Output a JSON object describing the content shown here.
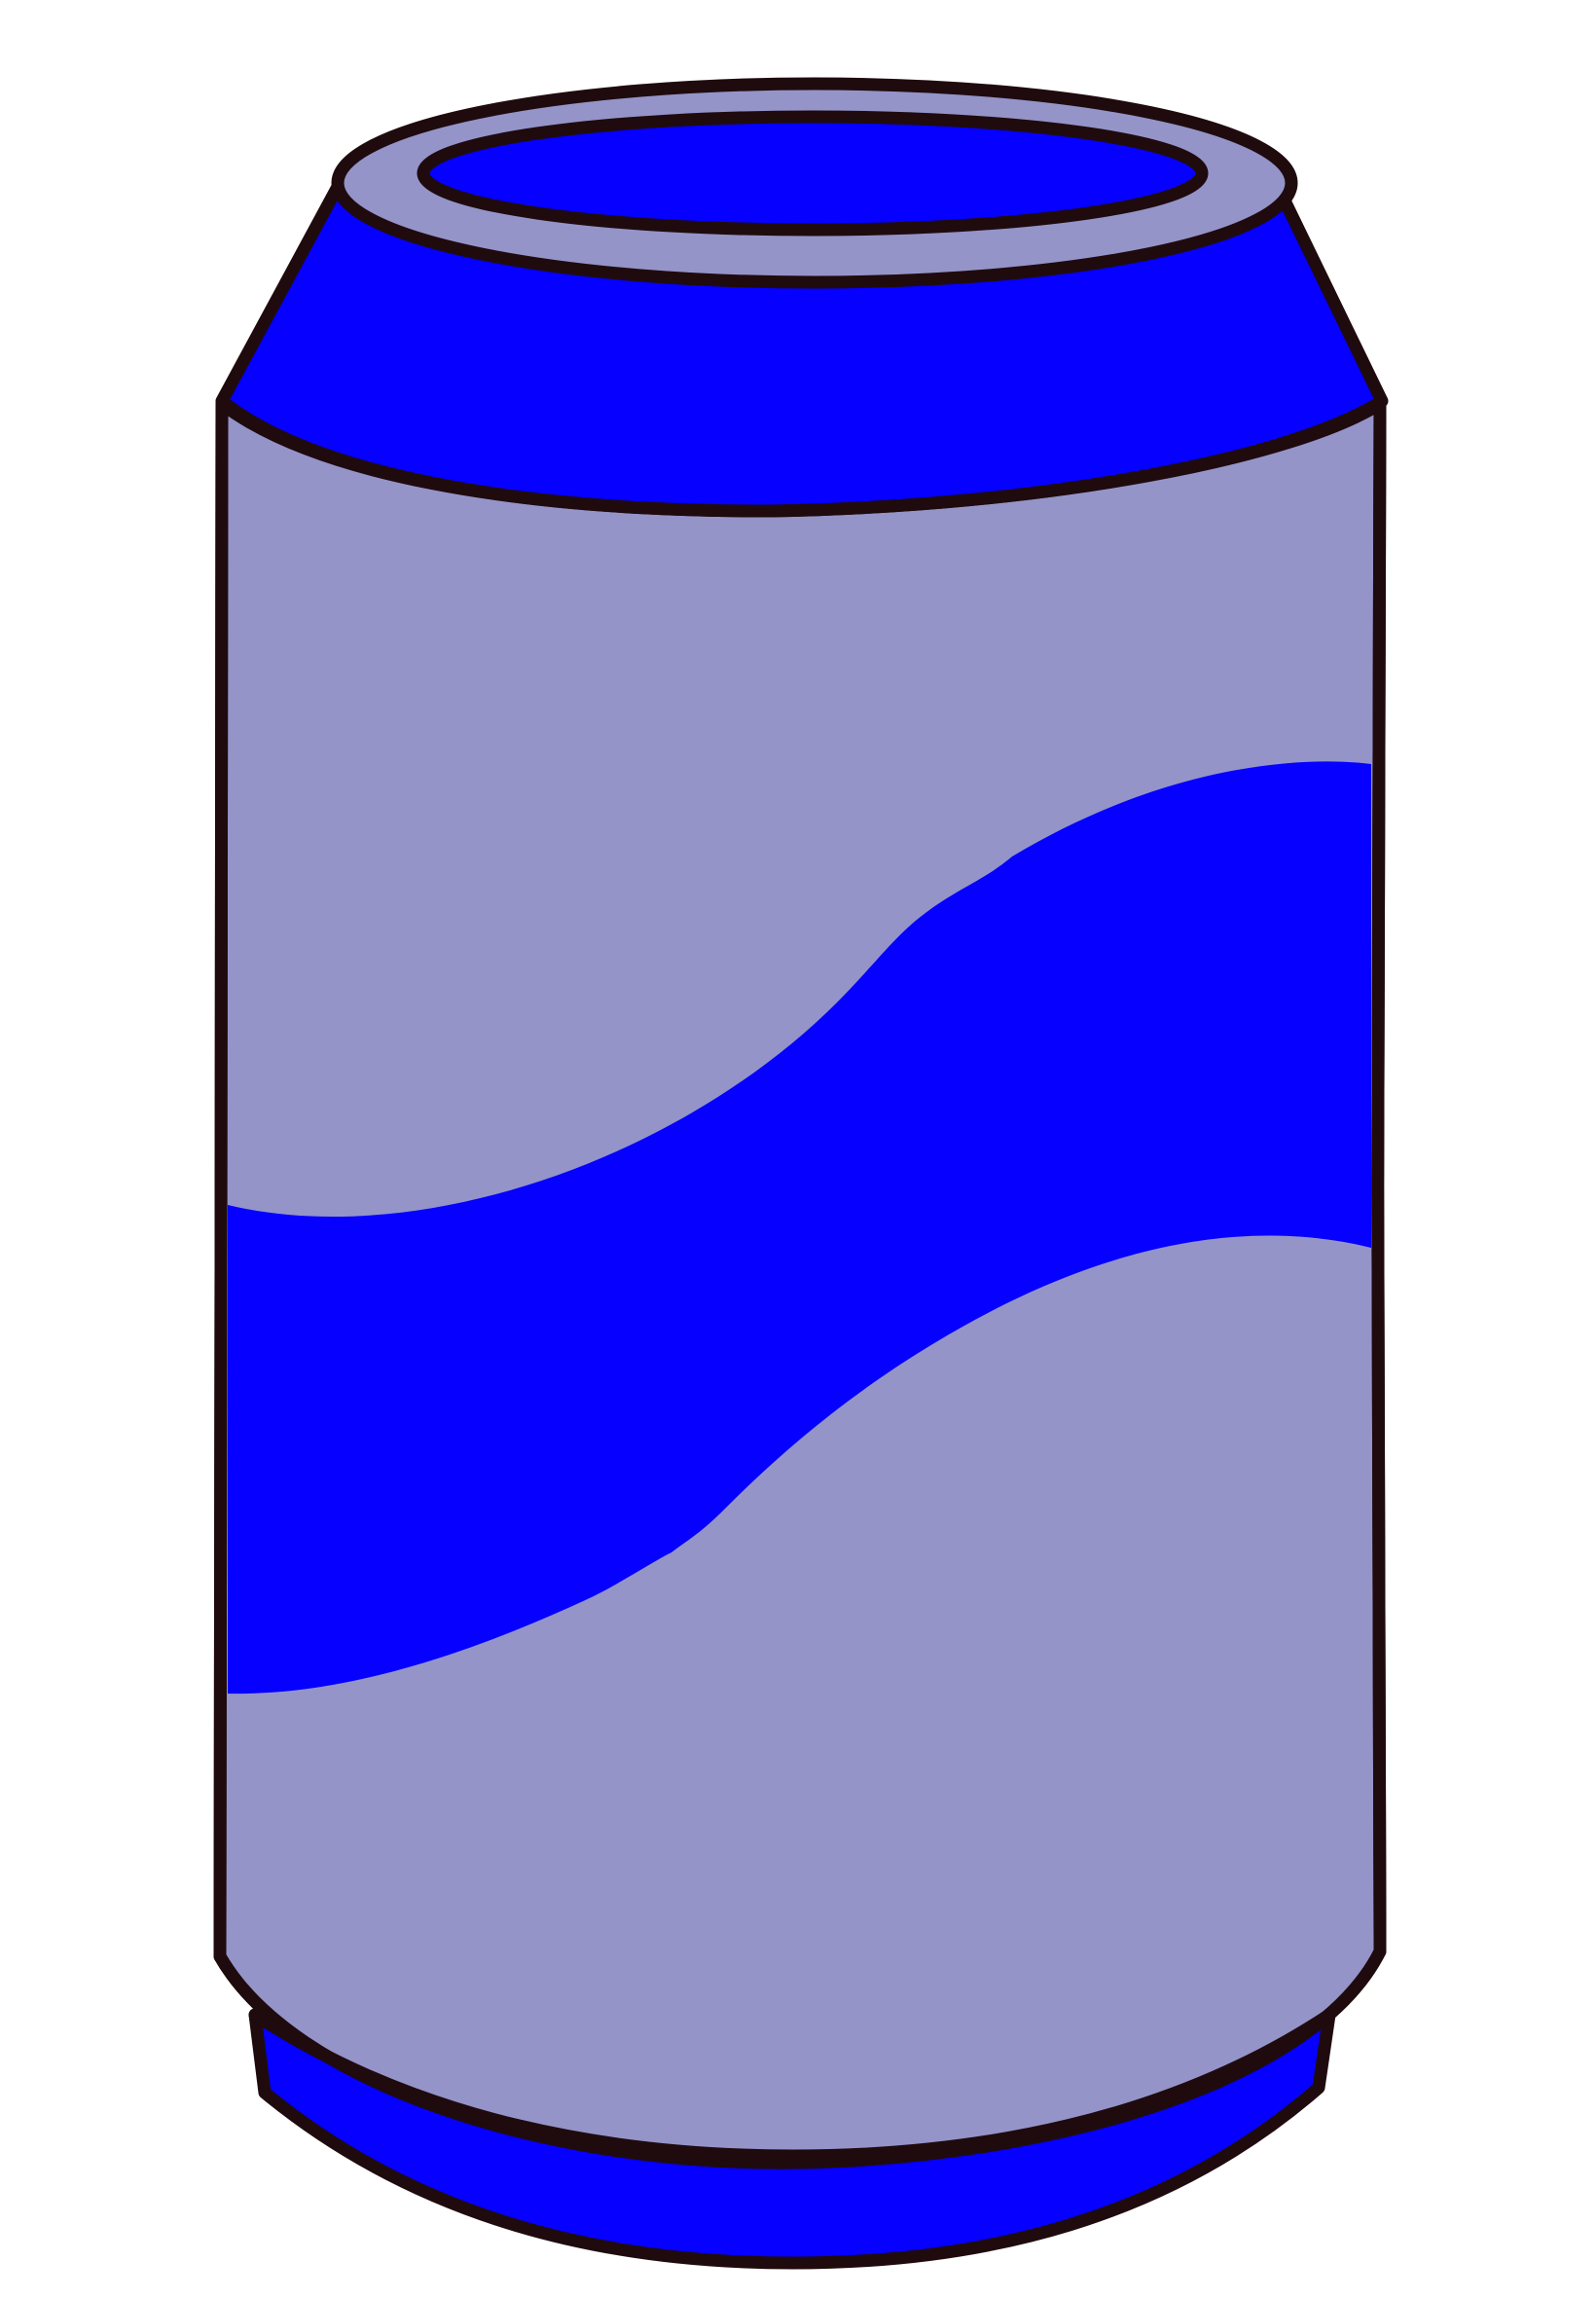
{
  "illustration": {
    "subject": "soda-can",
    "colors": {
      "background": "#ffffff",
      "accent_blue": "#0500ff",
      "body_lavender": "#9494c9",
      "outline": "#1f0b0e"
    }
  }
}
